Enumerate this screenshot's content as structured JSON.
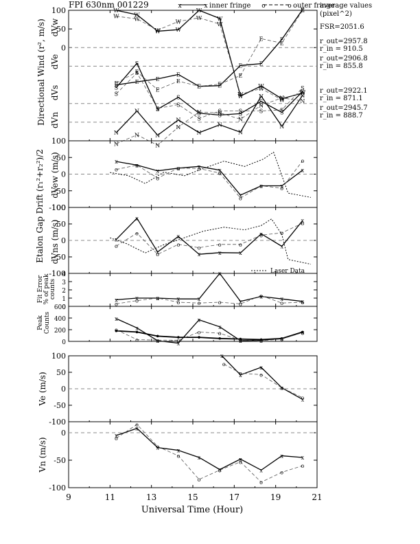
{
  "header": {
    "title": "FPI 630nm 001229",
    "legend_inner": "inner fringe",
    "legend_outer": "outer fringe",
    "avg_title_1": "average values",
    "avg_title_2": "(pixel^2)",
    "fsr": "FSR=2051.6",
    "r_rows": [
      [
        "r_out=2957.8",
        "r_in = 910.5"
      ],
      [
        "r_out=2906.8",
        "r_in = 855.8"
      ],
      [
        "r_out=2922.1",
        "r_in = 871.1"
      ],
      [
        "r_out=2945.7",
        "r_in = 888.7"
      ]
    ]
  },
  "axis_labels": {
    "directional_wind": "Directional Wind (r², m/s)",
    "dvw": "dVw",
    "dve": "dVe",
    "dvs": "dVs",
    "dvn": "dVn",
    "etalon": "Etalon Gap Drift (r₁²+r₂²)/2",
    "dvew": "dVew (m/s)",
    "dvns": "dVns (m/s)",
    "fit_error": "Fit Error",
    "fit_error_2": "% of peak",
    "fit_error_3": "counts",
    "peak": "Peak",
    "peak_2": "Counts",
    "ve": "Ve (m/s)",
    "vn": "Vn (m/s)",
    "xlabel": "Universal Time (Hour)",
    "laser_legend": "Laser Data"
  },
  "chart_data": {
    "type": "line",
    "x_ticks": [
      9,
      11,
      13,
      15,
      17,
      19,
      21
    ],
    "panels": [
      {
        "name": "directional-wind",
        "ylim": [
          -250,
          100
        ],
        "y_ticks": [
          100,
          50,
          0
        ],
        "groups": [
          {
            "label": "W",
            "baseline": 0,
            "inner": [
              [
                11.3,
                100
              ],
              [
                12.3,
                88
              ],
              [
                13.3,
                44
              ],
              [
                14.3,
                48
              ],
              [
                15.3,
                100
              ],
              [
                16.3,
                78
              ],
              [
                17.3,
                -130
              ],
              [
                18.3,
                -103
              ],
              [
                19.3,
                -137
              ],
              [
                20.3,
                -122
              ]
            ],
            "outer": [
              [
                11.3,
                84
              ],
              [
                12.3,
                77
              ],
              [
                13.3,
                47
              ],
              [
                14.3,
                70
              ],
              [
                15.3,
                80
              ],
              [
                16.3,
                63
              ],
              [
                17.3,
                -125
              ],
              [
                18.3,
                -110
              ],
              [
                19.3,
                -140
              ],
              [
                20.3,
                -120
              ]
            ]
          },
          {
            "label": "E",
            "baseline": -50,
            "inner": [
              [
                11.3,
                -100
              ],
              [
                12.3,
                -92
              ],
              [
                13.3,
                -84
              ],
              [
                14.3,
                -72
              ],
              [
                15.3,
                -104
              ],
              [
                16.3,
                -102
              ],
              [
                17.3,
                -48
              ],
              [
                18.3,
                -43
              ],
              [
                19.3,
                22
              ],
              [
                20.3,
                102
              ]
            ],
            "outer": [
              [
                11.3,
                -95
              ],
              [
                12.3,
                -65
              ],
              [
                13.3,
                -113
              ],
              [
                14.3,
                -90
              ],
              [
                15.3,
                -104
              ],
              [
                16.3,
                -98
              ],
              [
                17.3,
                -75
              ],
              [
                18.3,
                24
              ],
              [
                19.3,
                12
              ],
              [
                20.3,
                100
              ]
            ]
          },
          {
            "label": "S",
            "baseline": -150,
            "inner": [
              [
                11.3,
                -107
              ],
              [
                12.3,
                -42
              ],
              [
                13.3,
                -165
              ],
              [
                14.3,
                -133
              ],
              [
                15.3,
                -176
              ],
              [
                16.3,
                -181
              ],
              [
                17.3,
                -177
              ],
              [
                18.3,
                -144
              ],
              [
                19.3,
                -174
              ],
              [
                20.3,
                -118
              ]
            ],
            "outer": [
              [
                11.3,
                -124
              ],
              [
                12.3,
                -68
              ],
              [
                13.3,
                -163
              ],
              [
                14.3,
                -153
              ],
              [
                15.3,
                -190
              ],
              [
                16.3,
                -170
              ],
              [
                17.3,
                -170
              ],
              [
                18.3,
                -170
              ],
              [
                19.3,
                -167
              ],
              [
                20.3,
                -108
              ]
            ]
          },
          {
            "label": "N",
            "baseline": -200,
            "inner": [
              [
                11.3,
                -228
              ],
              [
                12.3,
                -170
              ],
              [
                13.3,
                -235
              ],
              [
                14.3,
                -194
              ],
              [
                15.3,
                -228
              ],
              [
                16.3,
                -207
              ],
              [
                17.3,
                -227
              ],
              [
                18.3,
                -130
              ],
              [
                19.3,
                -211
              ],
              [
                20.3,
                -128
              ]
            ],
            "outer": [
              [
                11.3,
                -258
              ],
              [
                12.3,
                -234
              ],
              [
                13.3,
                -262
              ],
              [
                14.3,
                -213
              ],
              [
                15.3,
                -173
              ],
              [
                16.3,
                -175
              ],
              [
                17.3,
                -192
              ],
              [
                18.3,
                -155
              ],
              [
                19.3,
                -135
              ],
              [
                20.3,
                -143
              ]
            ]
          }
        ]
      },
      {
        "name": "dvew",
        "ylim": [
          -100,
          100
        ],
        "y_ticks": [
          100,
          50,
          0,
          -50,
          -100
        ],
        "inner": [
          [
            11.3,
            38
          ],
          [
            12.3,
            27
          ],
          [
            13.3,
            10
          ],
          [
            14.3,
            18
          ],
          [
            15.3,
            23
          ],
          [
            16.3,
            12
          ],
          [
            17.3,
            -63
          ],
          [
            18.3,
            -35
          ],
          [
            19.3,
            -35
          ],
          [
            20.3,
            12
          ]
        ],
        "outer": [
          [
            11.3,
            14
          ],
          [
            12.3,
            27
          ],
          [
            13.3,
            -12
          ],
          [
            14.3,
            18
          ],
          [
            15.3,
            17
          ],
          [
            16.3,
            3
          ],
          [
            17.3,
            -72
          ],
          [
            18.3,
            -35
          ],
          [
            19.3,
            -42
          ],
          [
            20.3,
            40
          ]
        ],
        "laser": [
          [
            11,
            5
          ],
          [
            11.9,
            -5
          ],
          [
            12.7,
            -28
          ],
          [
            13.6,
            6
          ],
          [
            14.6,
            -5
          ],
          [
            15.5,
            17
          ],
          [
            16.5,
            39
          ],
          [
            17.5,
            23
          ],
          [
            18.4,
            45
          ],
          [
            18.9,
            66
          ],
          [
            19.6,
            -57
          ],
          [
            20.7,
            -70
          ]
        ]
      },
      {
        "name": "dvns",
        "ylim": [
          -100,
          100
        ],
        "y_ticks": [
          100,
          50,
          0,
          -50,
          -100
        ],
        "inner": [
          [
            11.3,
            3
          ],
          [
            12.3,
            67
          ],
          [
            13.3,
            -35
          ],
          [
            14.3,
            12
          ],
          [
            15.3,
            -42
          ],
          [
            16.3,
            -37
          ],
          [
            17.3,
            -38
          ],
          [
            18.3,
            20
          ],
          [
            19.3,
            -18
          ],
          [
            20.3,
            60
          ]
        ],
        "outer": [
          [
            11.3,
            -17
          ],
          [
            12.3,
            22
          ],
          [
            13.3,
            -42
          ],
          [
            14.3,
            -12
          ],
          [
            15.3,
            -22
          ],
          [
            16.3,
            -12
          ],
          [
            17.3,
            -12
          ],
          [
            18.3,
            16
          ],
          [
            19.3,
            23
          ],
          [
            20.3,
            52
          ]
        ],
        "laser": [
          [
            11,
            8
          ],
          [
            11.8,
            -10
          ],
          [
            12.7,
            -38
          ],
          [
            13.6,
            -13
          ],
          [
            14.5,
            6
          ],
          [
            15.5,
            28
          ],
          [
            16.5,
            40
          ],
          [
            17.5,
            32
          ],
          [
            18.3,
            45
          ],
          [
            18.8,
            65
          ],
          [
            19.3,
            18
          ],
          [
            19.6,
            -58
          ],
          [
            20.7,
            -72
          ]
        ]
      },
      {
        "name": "fit-error",
        "ylim": [
          0,
          4
        ],
        "y_ticks": [
          4,
          3,
          2,
          1,
          0
        ],
        "inner": [
          [
            11.3,
            0.8
          ],
          [
            12.3,
            1.0
          ],
          [
            13.3,
            1.0
          ],
          [
            14.3,
            0.9
          ],
          [
            15.3,
            0.9
          ],
          [
            16.3,
            4.0
          ],
          [
            17.3,
            0.6
          ],
          [
            18.3,
            1.2
          ],
          [
            19.3,
            0.9
          ],
          [
            20.3,
            0.6
          ]
        ],
        "outer": [
          [
            11.3,
            0.3
          ],
          [
            12.3,
            0.7
          ],
          [
            13.3,
            1.0
          ],
          [
            14.3,
            0.5
          ],
          [
            15.3,
            0.4
          ],
          [
            16.3,
            0.5
          ],
          [
            17.3,
            0.3
          ],
          [
            18.3,
            1.3
          ],
          [
            19.3,
            0.4
          ],
          [
            20.3,
            0.5
          ]
        ]
      },
      {
        "name": "peak-counts",
        "ylim": [
          0,
          600
        ],
        "y_ticks": [
          600,
          400,
          200,
          0
        ],
        "inner": [
          [
            11.3,
            390
          ],
          [
            12.3,
            230
          ],
          [
            13.3,
            10
          ],
          [
            14.3,
            -30
          ],
          [
            15.3,
            370
          ],
          [
            16.3,
            250
          ],
          [
            17.3,
            10
          ],
          [
            18.3,
            20
          ],
          [
            19.3,
            50
          ],
          [
            20.3,
            160
          ]
        ],
        "outer": [
          [
            11.3,
            200
          ],
          [
            12.3,
            30
          ],
          [
            13.3,
            20
          ],
          [
            14.3,
            20
          ],
          [
            15.3,
            160
          ],
          [
            16.3,
            140
          ],
          [
            17.3,
            20
          ],
          [
            18.3,
            10
          ],
          [
            19.3,
            40
          ],
          [
            20.3,
            150
          ]
        ],
        "extra": [
          [
            11.3,
            180
          ],
          [
            12.3,
            160
          ],
          [
            13.3,
            90
          ],
          [
            14.3,
            70
          ],
          [
            15.3,
            70
          ],
          [
            16.3,
            50
          ],
          [
            17.3,
            40
          ],
          [
            18.3,
            30
          ],
          [
            19.3,
            50
          ],
          [
            20.3,
            160
          ]
        ]
      },
      {
        "name": "ve",
        "ylim": [
          -100,
          100
        ],
        "y_ticks": [
          100,
          50,
          0,
          -50,
          -100
        ],
        "inner": [
          [
            16.4,
            100
          ],
          [
            17.3,
            42
          ],
          [
            18.3,
            65
          ],
          [
            19.3,
            3
          ],
          [
            20.3,
            -32
          ]
        ],
        "outer": [
          [
            16.5,
            75
          ],
          [
            17.3,
            47
          ],
          [
            18.3,
            43
          ],
          [
            19.3,
            3
          ],
          [
            20.3,
            -27
          ]
        ]
      },
      {
        "name": "vn",
        "ylim": [
          -100,
          20
        ],
        "y_ticks": [
          0,
          -50,
          -100
        ],
        "inner": [
          [
            11.3,
            -5
          ],
          [
            12.3,
            8
          ],
          [
            13.3,
            -27
          ],
          [
            14.3,
            -32
          ],
          [
            15.3,
            -45
          ],
          [
            16.3,
            -67
          ],
          [
            17.3,
            -48
          ],
          [
            18.3,
            -68
          ],
          [
            19.3,
            -42
          ],
          [
            20.3,
            -45
          ]
        ],
        "outer": [
          [
            11.3,
            -10
          ],
          [
            12.3,
            15
          ],
          [
            13.3,
            -25
          ],
          [
            14.3,
            -42
          ],
          [
            15.3,
            -85
          ],
          [
            16.3,
            -68
          ],
          [
            17.3,
            -53
          ],
          [
            18.3,
            -90
          ],
          [
            19.3,
            -72
          ],
          [
            20.3,
            -60
          ]
        ]
      }
    ]
  }
}
